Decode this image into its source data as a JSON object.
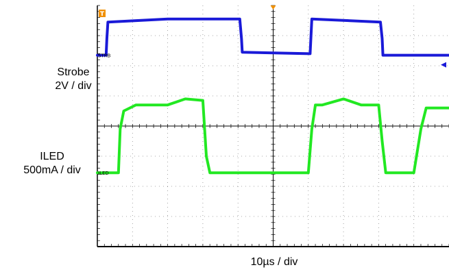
{
  "chart_data": {
    "type": "line",
    "title": "",
    "x_scale_label": "10µs / div",
    "divisions": {
      "x": 10,
      "y": 8
    },
    "grid": true,
    "series": [
      {
        "name": "STRB",
        "axis_label": [
          "Strobe",
          "2V / div"
        ],
        "channel_marker": "STRB",
        "color": "#1a1ad8",
        "x_div": [
          0.0,
          0.25,
          0.27,
          0.3,
          2.0,
          4.05,
          4.1,
          4.12,
          6.05,
          6.1,
          8.05,
          8.1,
          8.12,
          10.0
        ],
        "y_div": [
          6.35,
          6.35,
          6.9,
          7.45,
          7.55,
          7.55,
          6.9,
          6.45,
          6.4,
          7.55,
          7.45,
          6.9,
          6.35,
          6.35
        ]
      },
      {
        "name": "ILED",
        "axis_label": [
          "ILED",
          "500mA / div"
        ],
        "channel_marker": "ILED",
        "color": "#22e822",
        "x_div": [
          0.0,
          0.6,
          0.65,
          0.75,
          1.1,
          2.0,
          2.5,
          3.0,
          3.1,
          3.2,
          6.0,
          6.1,
          6.2,
          6.4,
          7.0,
          7.5,
          8.0,
          8.1,
          8.2,
          9.0,
          9.2,
          9.35,
          10.0
        ],
        "y_div": [
          2.45,
          2.45,
          3.9,
          4.5,
          4.7,
          4.7,
          4.9,
          4.85,
          3.0,
          2.45,
          2.45,
          3.9,
          4.7,
          4.7,
          4.9,
          4.7,
          4.7,
          3.5,
          2.45,
          2.45,
          3.9,
          4.6,
          4.6
        ]
      }
    ],
    "trigger_marker": "T",
    "colors": {
      "trigger": "#f09000",
      "background": "#ffffff",
      "grid": "#000000"
    }
  }
}
